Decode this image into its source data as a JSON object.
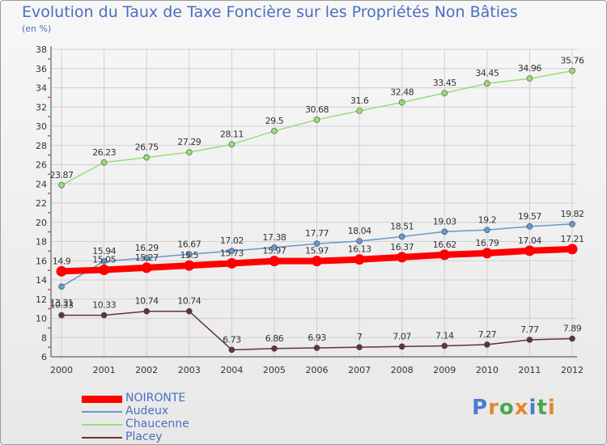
{
  "title": "Evolution du Taux de Taxe Foncière sur les Propriétés Non Bâties",
  "subtitle": "(en %)",
  "logo": {
    "text": "Proxiti",
    "letters": [
      "P",
      "r",
      "o",
      "x",
      "i",
      "t",
      "i"
    ],
    "colors": [
      "#4a7bd0",
      "#e8862c",
      "#4aa84a",
      "#e8862c",
      "#4a7bd0",
      "#4aa84a",
      "#e8862c"
    ]
  },
  "chart_data": {
    "type": "line",
    "title": "Evolution du Taux de Taxe Foncière sur les Propriétés Non Bâties",
    "ylabel": "(en %)",
    "xlabel": "",
    "ylim": [
      6,
      38
    ],
    "yticks": [
      6,
      8,
      10,
      12,
      14,
      16,
      18,
      20,
      22,
      24,
      26,
      28,
      30,
      32,
      34,
      36,
      38
    ],
    "categories": [
      "2000",
      "2001",
      "2002",
      "2003",
      "2004",
      "2005",
      "2006",
      "2007",
      "2008",
      "2009",
      "2010",
      "2011",
      "2012"
    ],
    "grid": true,
    "legend_position": "bottom-left",
    "series": [
      {
        "name": "NOIRONTE",
        "color": "#ff0000",
        "values": [
          14.9,
          15.05,
          15.27,
          15.5,
          15.73,
          15.97,
          15.97,
          16.13,
          16.37,
          16.62,
          16.79,
          17.04,
          17.21
        ],
        "labels": [
          "14.9",
          "15.05",
          "15.27",
          "15.5",
          "15.73",
          "15.97",
          "15.97",
          "16.13",
          "16.37",
          "16.62",
          "16.79",
          "17.04",
          "17.21"
        ]
      },
      {
        "name": "Audeux",
        "color": "#6699cc",
        "values": [
          13.31,
          15.94,
          16.29,
          16.67,
          17.02,
          17.38,
          17.77,
          18.04,
          18.51,
          19.03,
          19.2,
          19.57,
          19.82
        ],
        "labels": [
          "13.31",
          "15.94",
          "16.29",
          "16.67",
          "17.02",
          "17.38",
          "17.77",
          "18.04",
          "18.51",
          "19.03",
          "19.2",
          "19.57",
          "19.82"
        ]
      },
      {
        "name": "Chaucenne",
        "color": "#99dd77",
        "values": [
          23.87,
          26.23,
          26.75,
          27.29,
          28.11,
          29.5,
          30.68,
          31.6,
          32.48,
          33.45,
          34.45,
          34.96,
          35.76
        ],
        "labels": [
          "23.87",
          "26.23",
          "26.75",
          "27.29",
          "28.11",
          "29.5",
          "30.68",
          "31.6",
          "32.48",
          "33.45",
          "34.45",
          "34.96",
          "35.76"
        ]
      },
      {
        "name": "Placey",
        "color": "#663333",
        "values": [
          10.33,
          10.33,
          10.74,
          10.74,
          6.73,
          6.86,
          6.93,
          7,
          7.07,
          7.14,
          7.27,
          7.77,
          7.89
        ],
        "labels": [
          "10.33",
          "10.33",
          "10.74",
          "10.74",
          "6.73",
          "6.86",
          "6.93",
          "7",
          "7.07",
          "7.14",
          "7.27",
          "7.77",
          "7.89"
        ]
      }
    ]
  }
}
